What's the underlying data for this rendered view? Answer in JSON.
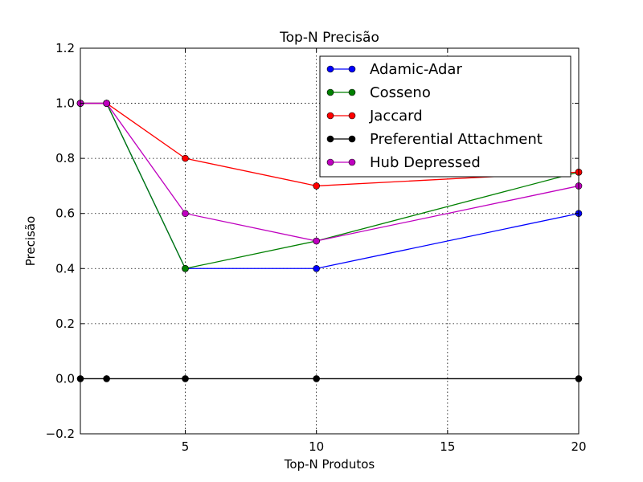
{
  "chart_data": {
    "type": "line",
    "title": "Top-N Precisão",
    "xlabel": "Top-N Produtos",
    "ylabel": "Precisão",
    "x": [
      1,
      2,
      5,
      10,
      20
    ],
    "xlim": [
      1,
      20
    ],
    "ylim": [
      -0.2,
      1.2
    ],
    "x_ticks": [
      5,
      10,
      15,
      20
    ],
    "x_tick_labels": [
      "5",
      "10",
      "15",
      "20"
    ],
    "y_ticks": [
      -0.2,
      0.0,
      0.2,
      0.4,
      0.6,
      0.8,
      1.0,
      1.2
    ],
    "y_tick_labels": [
      "−0.2",
      "0.0",
      "0.2",
      "0.4",
      "0.6",
      "0.8",
      "1.0",
      "1.2"
    ],
    "grid": true,
    "legend_position": "top-right",
    "series": [
      {
        "name": "Adamic-Adar",
        "color": "#0000ff",
        "values": [
          1.0,
          1.0,
          0.4,
          0.4,
          0.6
        ]
      },
      {
        "name": "Cosseno",
        "color": "#008000",
        "values": [
          1.0,
          1.0,
          0.4,
          0.5,
          0.75
        ]
      },
      {
        "name": "Jaccard",
        "color": "#ff0000",
        "values": [
          1.0,
          1.0,
          0.8,
          0.7,
          0.75
        ]
      },
      {
        "name": "Preferential Attachment",
        "color": "#000000",
        "values": [
          0.0,
          0.0,
          0.0,
          0.0,
          0.0
        ]
      },
      {
        "name": "Hub Depressed",
        "color": "#bf00bf",
        "values": [
          1.0,
          1.0,
          0.6,
          0.5,
          0.7
        ]
      }
    ]
  }
}
